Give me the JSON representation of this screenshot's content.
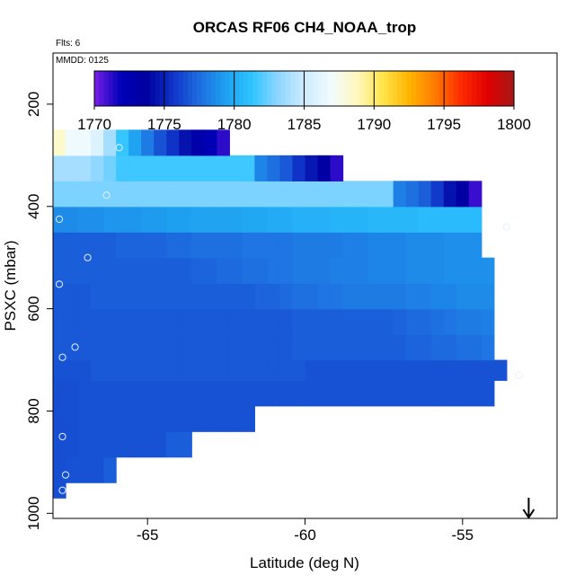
{
  "chart_data": {
    "type": "heatmap",
    "title": "ORCAS RF06 CH4_NOAA_trop",
    "annotations": {
      "flights": "Flts: 6",
      "date": "MMDD: 0125"
    },
    "xlabel": "Latitude (deg N)",
    "ylabel": "PSXC (mbar)",
    "xlim": [
      -68.0,
      -52.0
    ],
    "ylim": [
      1010,
      100
    ],
    "x_ticks": [
      -65,
      -60,
      -55
    ],
    "x_tick_labels": [
      "-65",
      "-60",
      "-55"
    ],
    "y_ticks": [
      200,
      400,
      600,
      800,
      1000
    ],
    "y_tick_labels": [
      "200",
      "400",
      "600",
      "800",
      "1000"
    ],
    "colorbar": {
      "ticks": [
        1770,
        1775,
        1780,
        1785,
        1790,
        1795,
        1800
      ],
      "tick_labels": [
        "1770",
        "1775",
        "1780",
        "1785",
        "1790",
        "1795",
        "1800"
      ],
      "range": [
        1770,
        1800
      ],
      "colors": [
        "#7a1fe8",
        "#0000b8",
        "#0000a0",
        "#1034c8",
        "#1e6de0",
        "#1ea0f0",
        "#2dc4ff",
        "#8ed6ff",
        "#cdebff",
        "#f0fbff",
        "#fff8c0",
        "#ffe44a",
        "#ffb400",
        "#ff7a00",
        "#ff2a00",
        "#e00000",
        "#a61818"
      ]
    },
    "layers": [
      {
        "p_top": 970,
        "p_bot": 940,
        "x_start": -68.0,
        "values": [
          1776.5
        ]
      },
      {
        "p_top": 940,
        "p_bot": 890,
        "x_start": -68.0,
        "values": [
          1776.5,
          1776.6,
          1776.6,
          1776.6,
          1777.0
        ]
      },
      {
        "p_top": 890,
        "p_bot": 840,
        "x_start": -68.0,
        "values": [
          1776.5,
          1776.5,
          1776.6,
          1776.6,
          1776.6,
          1776.6,
          1776.6,
          1776.6,
          1776.6,
          1777.0,
          1777.0
        ]
      },
      {
        "p_top": 840,
        "p_bot": 790,
        "x_start": -68.0,
        "values": [
          1776.5,
          1776.5,
          1776.6,
          1776.6,
          1776.6,
          1776.6,
          1776.6,
          1776.6,
          1776.6,
          1776.6,
          1776.6,
          1776.6,
          1776.6,
          1776.6,
          1776.6,
          1776.6
        ]
      },
      {
        "p_top": 790,
        "p_bot": 740,
        "x_start": -68.0,
        "values": [
          1776.5,
          1776.5,
          1776.6,
          1776.6,
          1776.6,
          1776.6,
          1776.6,
          1776.6,
          1776.6,
          1776.6,
          1776.6,
          1776.6,
          1776.6,
          1776.6,
          1776.6,
          1776.6,
          1776.6,
          1776.6,
          1776.6,
          1776.6,
          1776.6,
          1776.6,
          1776.6,
          1776.6,
          1776.6,
          1776.6,
          1776.6,
          1776.6,
          1776.6,
          1776.6,
          1776.6,
          1776.6,
          1776.6,
          1776.6,
          1776.6
        ]
      },
      {
        "p_top": 740,
        "p_bot": 700,
        "x_start": -68.0,
        "values": [
          1776.6,
          1776.6,
          1776.6,
          1776.8,
          1776.8,
          1776.8,
          1776.8,
          1776.8,
          1776.8,
          1776.8,
          1776.8,
          1776.8,
          1776.8,
          1776.8,
          1776.8,
          1776.8,
          1776.8,
          1776.8,
          1776.8,
          1776.8,
          1776.6,
          1776.6,
          1776.6,
          1776.6,
          1776.6,
          1776.6,
          1776.6,
          1776.6,
          1776.6,
          1776.6,
          1776.6,
          1776.6,
          1776.6,
          1776.6,
          1776.6,
          1776.6
        ]
      },
      {
        "p_top": 700,
        "p_bot": 650,
        "x_start": -68.0,
        "values": [
          1776.8,
          1776.8,
          1776.8,
          1776.8,
          1776.8,
          1776.8,
          1776.8,
          1776.8,
          1776.8,
          1776.8,
          1776.8,
          1776.8,
          1776.8,
          1776.8,
          1776.8,
          1776.8,
          1776.8,
          1776.8,
          1776.8,
          1777.0,
          1777.0,
          1777.0,
          1777.0,
          1777.0,
          1777.0,
          1777.0,
          1777.0,
          1777.0,
          1777.2,
          1777.2,
          1777.4,
          1777.4,
          1777.6,
          1777.6,
          1777.8
        ]
      },
      {
        "p_top": 650,
        "p_bot": 600,
        "x_start": -68.0,
        "values": [
          1776.8,
          1776.8,
          1776.8,
          1776.8,
          1776.8,
          1776.8,
          1776.8,
          1776.8,
          1776.8,
          1776.8,
          1776.8,
          1776.8,
          1776.8,
          1776.8,
          1776.8,
          1776.8,
          1776.8,
          1776.8,
          1776.8,
          1777.0,
          1777.0,
          1777.0,
          1777.0,
          1777.0,
          1777.0,
          1777.0,
          1777.0,
          1777.2,
          1777.4,
          1777.4,
          1777.6,
          1777.8,
          1778.0,
          1778.0,
          1778.2
        ]
      },
      {
        "p_top": 600,
        "p_bot": 550,
        "x_start": -68.0,
        "values": [
          1776.8,
          1776.8,
          1776.8,
          1777.0,
          1777.0,
          1777.0,
          1777.0,
          1777.0,
          1777.0,
          1777.0,
          1777.0,
          1777.0,
          1777.0,
          1777.0,
          1777.0,
          1777.0,
          1777.2,
          1777.2,
          1777.4,
          1777.6,
          1777.6,
          1777.8,
          1777.8,
          1778.0,
          1778.0,
          1778.0,
          1778.0,
          1778.0,
          1778.2,
          1778.2,
          1778.4,
          1778.4,
          1778.6,
          1778.6,
          1778.6
        ]
      },
      {
        "p_top": 550,
        "p_bot": 500,
        "x_start": -68.0,
        "values": [
          1777.0,
          1777.0,
          1777.0,
          1777.0,
          1777.0,
          1777.0,
          1777.0,
          1777.0,
          1777.0,
          1777.0,
          1777.0,
          1777.2,
          1777.2,
          1777.4,
          1777.4,
          1777.6,
          1777.6,
          1777.8,
          1777.8,
          1778.0,
          1778.0,
          1778.0,
          1778.2,
          1778.2,
          1778.2,
          1778.4,
          1778.4,
          1778.4,
          1778.6,
          1778.6,
          1778.6,
          1778.8,
          1778.8,
          1778.8,
          1778.8
        ]
      },
      {
        "p_top": 500,
        "p_bot": 450,
        "x_start": -68.0,
        "values": [
          1777.0,
          1777.0,
          1777.0,
          1777.0,
          1777.0,
          1777.2,
          1777.2,
          1777.2,
          1777.2,
          1777.4,
          1777.4,
          1777.6,
          1777.6,
          1777.6,
          1777.6,
          1777.8,
          1777.8,
          1777.8,
          1777.8,
          1778.0,
          1778.0,
          1778.0,
          1778.0,
          1778.2,
          1778.2,
          1778.4,
          1778.4,
          1778.4,
          1778.6,
          1778.6,
          1778.6,
          1778.8,
          1778.8,
          1778.8
        ]
      },
      {
        "p_top": 450,
        "p_bot": 400,
        "x_start": -68.0,
        "values": [
          1778.6,
          1778.6,
          1778.8,
          1778.8,
          1779.0,
          1779.0,
          1779.0,
          1779.2,
          1779.2,
          1779.4,
          1779.4,
          1779.6,
          1779.6,
          1779.6,
          1779.6,
          1779.8,
          1779.8,
          1780.0,
          1780.0,
          1780.2,
          1780.2,
          1780.2,
          1780.4,
          1780.4,
          1780.4,
          1780.6,
          1780.6,
          1780.6,
          1780.6,
          1780.8,
          1780.8,
          1780.8,
          1780.8,
          1780.8
        ]
      },
      {
        "p_top": 400,
        "p_bot": 350,
        "x_start": -68.0,
        "values": [
          1782.8,
          1782.8,
          1782.8,
          1782.8,
          1782.8,
          1782.8,
          1782.8,
          1782.8,
          1782.8,
          1782.8,
          1782.8,
          1782.8,
          1782.8,
          1782.8,
          1782.8,
          1782.8,
          1782.8,
          1782.8,
          1782.8,
          1782.8,
          1782.8,
          1782.8,
          1782.8,
          1782.8,
          1782.8,
          1782.8,
          1782.8,
          1778.2,
          1777.6,
          1777.0,
          1775.8,
          1774.4,
          1773.6,
          1771.0
        ]
      },
      {
        "p_top": 350,
        "p_bot": 300,
        "x_start": -68.0,
        "values": [
          1783.8,
          1783.8,
          1783.8,
          1783.2,
          1782.6,
          1781.6,
          1781.6,
          1781.6,
          1781.6,
          1781.6,
          1781.6,
          1781.6,
          1781.6,
          1781.6,
          1781.6,
          1781.6,
          1778.4,
          1777.6,
          1776.8,
          1775.6,
          1774.6,
          1773.6,
          1771.2
        ]
      },
      {
        "p_top": 300,
        "p_bot": 250,
        "x_start": -68.0,
        "values": [
          1788.4,
          1786.8,
          1786.8,
          1785.8,
          1783.8,
          1781.4,
          1779.6,
          1778.0,
          1776.6,
          1775.6,
          1774.4,
          1773.0,
          1772.2,
          1771.2
        ]
      }
    ],
    "observations": [
      {
        "lat": -67.7,
        "p": 955
      },
      {
        "lat": -67.6,
        "p": 925
      },
      {
        "lat": -67.7,
        "p": 850
      },
      {
        "lat": -67.3,
        "p": 675
      },
      {
        "lat": -67.7,
        "p": 695
      },
      {
        "lat": -67.8,
        "p": 552
      },
      {
        "lat": -66.9,
        "p": 500
      },
      {
        "lat": -67.8,
        "p": 425
      },
      {
        "lat": -66.3,
        "p": 378
      },
      {
        "lat": -65.9,
        "p": 285
      },
      {
        "lat": -53.2,
        "p": 730
      },
      {
        "lat": -53.6,
        "p": 440
      }
    ],
    "marker": {
      "type": "down-arrow",
      "lat": -52.9
    }
  }
}
